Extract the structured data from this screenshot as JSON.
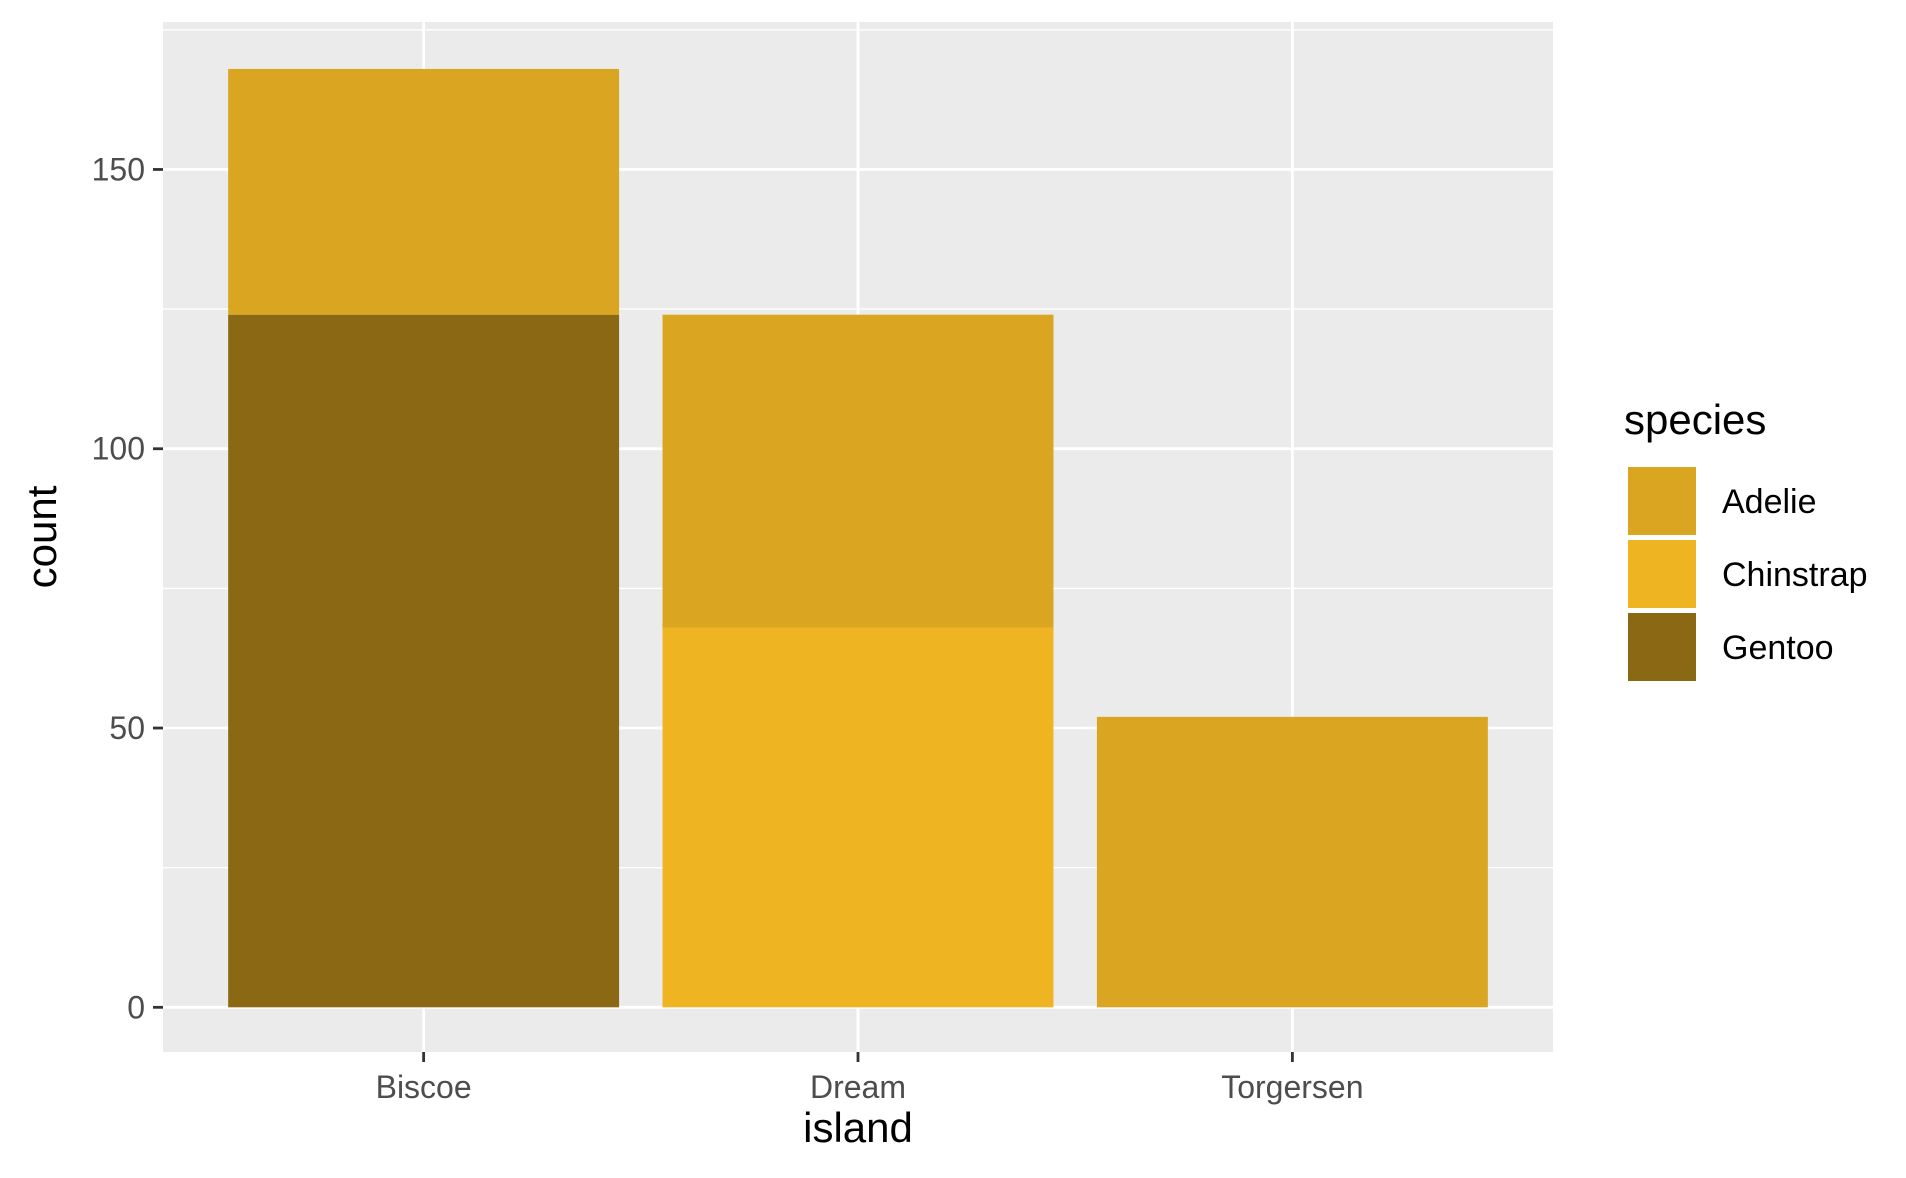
{
  "chart_data": {
    "type": "bar",
    "stacked": true,
    "categories": [
      "Biscoe",
      "Dream",
      "Torgersen"
    ],
    "series": [
      {
        "name": "Adelie",
        "color": "#DAA520",
        "values": [
          44,
          56,
          52
        ]
      },
      {
        "name": "Chinstrap",
        "color": "#EEB422",
        "values": [
          0,
          68,
          0
        ]
      },
      {
        "name": "Gentoo",
        "color": "#8B6914",
        "values": [
          124,
          0,
          0
        ]
      }
    ],
    "stack_order_bottom_to_top": [
      "Gentoo",
      "Chinstrap",
      "Adelie"
    ],
    "xlabel": "island",
    "ylabel": "count",
    "ylim": [
      -8,
      176.4
    ],
    "y_ticks": [
      0,
      50,
      100,
      150
    ],
    "y_tick_labels": [
      "0",
      "50",
      "100",
      "150"
    ],
    "grid": true,
    "legend": {
      "title": "species",
      "position": "right",
      "entries": [
        "Adelie",
        "Chinstrap",
        "Gentoo"
      ]
    },
    "colors": {
      "panel_background": "#EBEBEB",
      "grid_major": "#FFFFFF",
      "grid_minor": "#F5F5F5",
      "tick_text": "#4D4D4D",
      "tick_mark": "#333333"
    }
  }
}
